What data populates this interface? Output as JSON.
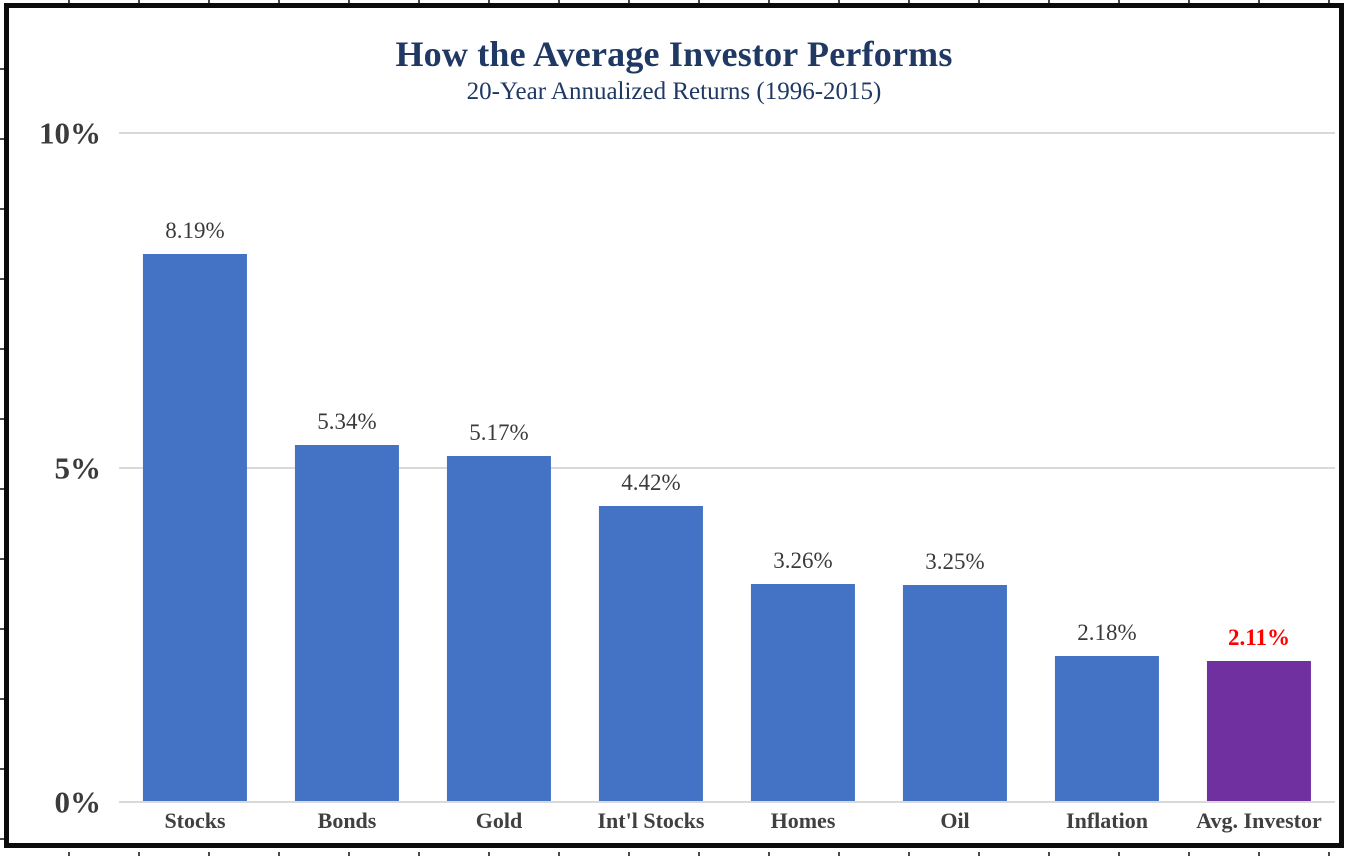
{
  "title": "How the Average Investor Performs",
  "subtitle": "20-Year Annualized Returns (1996-2015)",
  "chart_data": {
    "type": "bar",
    "title": "How the Average Investor Performs",
    "subtitle": "20-Year Annualized Returns (1996-2015)",
    "categories": [
      "Stocks",
      "Bonds",
      "Gold",
      "Int'l Stocks",
      "Homes",
      "Oil",
      "Inflation",
      "Avg. Investor"
    ],
    "values": [
      8.19,
      5.34,
      5.17,
      4.42,
      3.26,
      3.25,
      2.18,
      2.11
    ],
    "value_labels": [
      "8.19%",
      "5.34%",
      "5.17%",
      "4.42%",
      "3.26%",
      "3.25%",
      "2.18%",
      "2.11%"
    ],
    "highlight_index": 7,
    "xlabel": "",
    "ylabel": "",
    "ylim": [
      0,
      10
    ],
    "y_ticks": [
      {
        "value": 0,
        "label": "0%"
      },
      {
        "value": 5,
        "label": "5%"
      },
      {
        "value": 10,
        "label": "10%"
      }
    ],
    "grid": true,
    "legend_position": "none",
    "colors": {
      "bar": "#4472C4",
      "highlight_bar": "#7030A0",
      "value_label": "#3A3A3A",
      "highlight_value_label": "#FF0000",
      "title": "#1F3864",
      "axis_label": "#404040",
      "gridline": "#D9D9D9",
      "frame_border": "#0B0B0B"
    }
  }
}
